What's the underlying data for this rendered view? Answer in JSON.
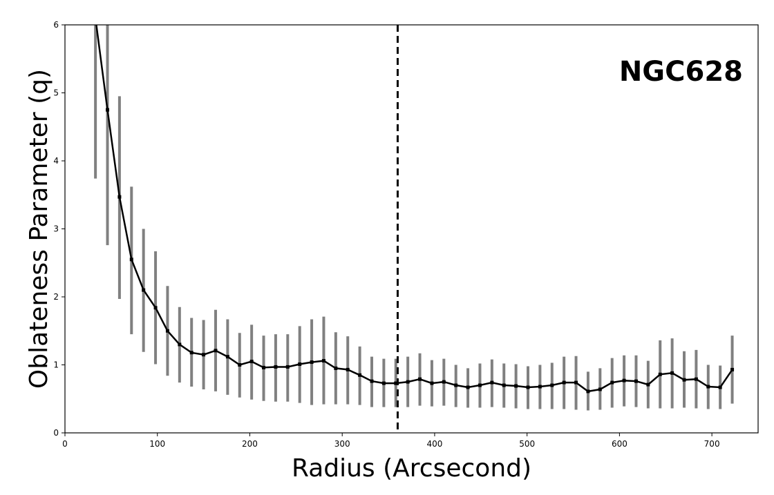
{
  "chart_data": {
    "type": "line",
    "xlabel": "Radius (Arcsecond)",
    "ylabel": "Oblateness Parameter (q)",
    "annotation": "NGC628",
    "xlim": [
      0,
      750
    ],
    "ylim": [
      0,
      6
    ],
    "xticks": [
      "0",
      "100",
      "200",
      "300",
      "400",
      "500",
      "600",
      "700"
    ],
    "yticks": [
      "0",
      "1",
      "2",
      "3",
      "4",
      "5",
      "6"
    ],
    "grid": false,
    "vline_x": 360,
    "colors": {
      "line": "#000000",
      "errorbar": "#808080",
      "vline": "#000000"
    },
    "series": [
      {
        "x": [
          33,
          46,
          59,
          72,
          85,
          98,
          111,
          124,
          137,
          150,
          163,
          176,
          189,
          202,
          215,
          228,
          241,
          254,
          267,
          280,
          293,
          306,
          319,
          332,
          345,
          358,
          371,
          384,
          397,
          410,
          423,
          436,
          449,
          462,
          475,
          488,
          501,
          514,
          527,
          540,
          553,
          566,
          579,
          592,
          605,
          618,
          631,
          644,
          657,
          670,
          683,
          696,
          709,
          722
        ],
        "y": [
          6.1,
          4.75,
          3.47,
          2.55,
          2.1,
          1.84,
          1.5,
          1.3,
          1.18,
          1.15,
          1.21,
          1.12,
          1.0,
          1.05,
          0.96,
          0.97,
          0.97,
          1.01,
          1.04,
          1.06,
          0.95,
          0.93,
          0.85,
          0.76,
          0.73,
          0.73,
          0.75,
          0.79,
          0.73,
          0.75,
          0.7,
          0.67,
          0.7,
          0.74,
          0.7,
          0.69,
          0.67,
          0.68,
          0.7,
          0.74,
          0.74,
          0.61,
          0.64,
          0.74,
          0.77,
          0.76,
          0.71,
          0.86,
          0.88,
          0.78,
          0.79,
          0.68,
          0.67,
          0.93
        ],
        "err_low": [
          3.74,
          2.76,
          1.97,
          1.45,
          1.19,
          1.01,
          0.84,
          0.74,
          0.68,
          0.64,
          0.61,
          0.56,
          0.52,
          0.49,
          0.47,
          0.46,
          0.46,
          0.44,
          0.41,
          0.42,
          0.42,
          0.42,
          0.41,
          0.38,
          0.38,
          0.38,
          0.38,
          0.4,
          0.39,
          0.4,
          0.38,
          0.37,
          0.37,
          0.38,
          0.37,
          0.36,
          0.35,
          0.35,
          0.35,
          0.35,
          0.34,
          0.33,
          0.34,
          0.37,
          0.39,
          0.38,
          0.36,
          0.36,
          0.36,
          0.37,
          0.36,
          0.35,
          0.35,
          0.43
        ],
        "err_high": [
          6.1,
          6.1,
          4.95,
          3.62,
          3.0,
          2.67,
          2.16,
          1.85,
          1.69,
          1.66,
          1.81,
          1.67,
          1.47,
          1.59,
          1.43,
          1.45,
          1.45,
          1.57,
          1.67,
          1.71,
          1.48,
          1.42,
          1.27,
          1.12,
          1.09,
          1.09,
          1.12,
          1.17,
          1.07,
          1.09,
          1.0,
          0.95,
          1.02,
          1.08,
          1.02,
          1.01,
          0.98,
          1.0,
          1.03,
          1.12,
          1.13,
          0.9,
          0.95,
          1.1,
          1.14,
          1.14,
          1.06,
          1.36,
          1.39,
          1.2,
          1.22,
          1.0,
          0.99,
          1.43
        ]
      }
    ]
  }
}
